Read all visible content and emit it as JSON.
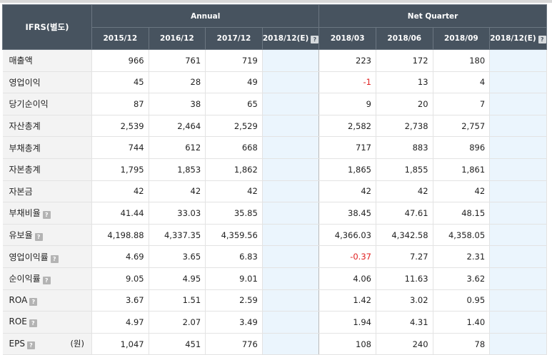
{
  "header": {
    "corner_label": "IFRS(별도)",
    "annual_label": "Annual",
    "quarter_label": "Net Quarter",
    "periods": [
      "2015/12",
      "2016/12",
      "2017/12",
      "2018/12(E)",
      "2018/03",
      "2018/06",
      "2018/09",
      "2018/12(E)"
    ]
  },
  "rows": [
    {
      "label": "매출액",
      "values": [
        "966",
        "761",
        "719",
        "",
        "223",
        "172",
        "180",
        ""
      ]
    },
    {
      "label": "영업이익",
      "values": [
        "45",
        "28",
        "49",
        "",
        "-1",
        "13",
        "4",
        ""
      ]
    },
    {
      "label": "당기순이익",
      "values": [
        "87",
        "38",
        "65",
        "",
        "9",
        "20",
        "7",
        ""
      ]
    },
    {
      "label": "자산총계",
      "values": [
        "2,539",
        "2,464",
        "2,529",
        "",
        "2,582",
        "2,738",
        "2,757",
        ""
      ]
    },
    {
      "label": "부채총계",
      "values": [
        "744",
        "612",
        "668",
        "",
        "717",
        "883",
        "896",
        ""
      ]
    },
    {
      "label": "자본총계",
      "values": [
        "1,795",
        "1,853",
        "1,862",
        "",
        "1,865",
        "1,855",
        "1,861",
        ""
      ]
    },
    {
      "label": "자본금",
      "values": [
        "42",
        "42",
        "42",
        "",
        "42",
        "42",
        "42",
        ""
      ]
    },
    {
      "label": "부채비율",
      "values": [
        "41.44",
        "33.03",
        "35.85",
        "",
        "38.45",
        "47.61",
        "48.15",
        ""
      ]
    },
    {
      "label": "유보율",
      "values": [
        "4,198.88",
        "4,337.35",
        "4,359.56",
        "",
        "4,366.03",
        "4,342.58",
        "4,358.05",
        ""
      ]
    },
    {
      "label": "영업이익률",
      "values": [
        "4.69",
        "3.65",
        "6.83",
        "",
        "-0.37",
        "7.27",
        "2.31",
        ""
      ]
    },
    {
      "label": "순이익률",
      "values": [
        "9.05",
        "4.95",
        "9.01",
        "",
        "4.06",
        "11.63",
        "3.62",
        ""
      ]
    },
    {
      "label": "ROA",
      "values": [
        "3.67",
        "1.51",
        "2.59",
        "",
        "1.42",
        "3.02",
        "0.95",
        ""
      ]
    },
    {
      "label": "ROE",
      "values": [
        "4.97",
        "2.07",
        "3.49",
        "",
        "1.94",
        "4.31",
        "1.40",
        ""
      ]
    },
    {
      "label": "EPS",
      "unit": "(원)",
      "values": [
        "1,047",
        "451",
        "776",
        "",
        "108",
        "240",
        "78",
        ""
      ]
    }
  ],
  "help_icon_glyph": "?",
  "colors": {
    "header_bg": "#47535f",
    "estimate_bg": "#ebf5fd",
    "negative": "#e02020"
  }
}
